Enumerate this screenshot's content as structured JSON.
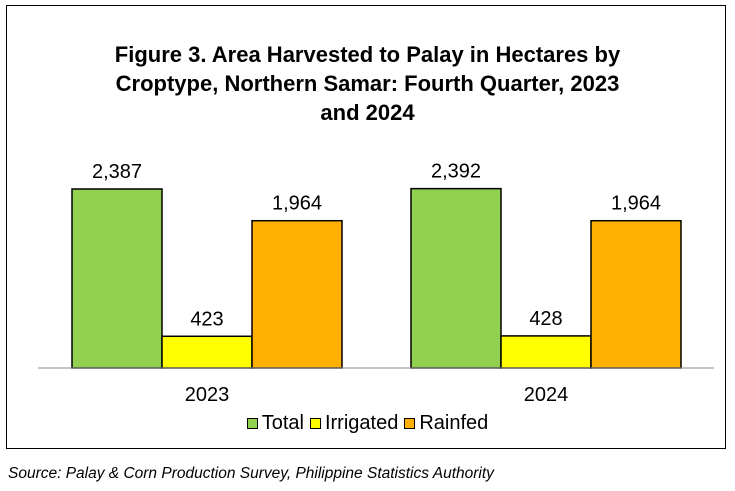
{
  "chart_data": {
    "type": "bar",
    "title_lines": [
      "Figure 3. Area Harvested to Palay in Hectares by",
      "Croptype, Northern Samar: Fourth Quarter, 2023",
      "and 2024"
    ],
    "categories": [
      "2023",
      "2024"
    ],
    "series": [
      {
        "name": "Total",
        "values": [
          2387,
          2392
        ],
        "labels": [
          "2,387",
          "2,392"
        ],
        "color": "#92D050"
      },
      {
        "name": "Irrigated",
        "values": [
          423,
          428
        ],
        "labels": [
          "423",
          "428"
        ],
        "color": "#FFFF00"
      },
      {
        "name": "Rainfed",
        "values": [
          1964,
          1964
        ],
        "labels": [
          "1,964",
          "1,964"
        ],
        "color": "#FFB000"
      }
    ],
    "ylim": [
      0,
      2387
    ],
    "grid": false,
    "legend_position": "bottom"
  },
  "source": "Source: Palay & Corn Production Survey, Philippine Statistics Authority"
}
